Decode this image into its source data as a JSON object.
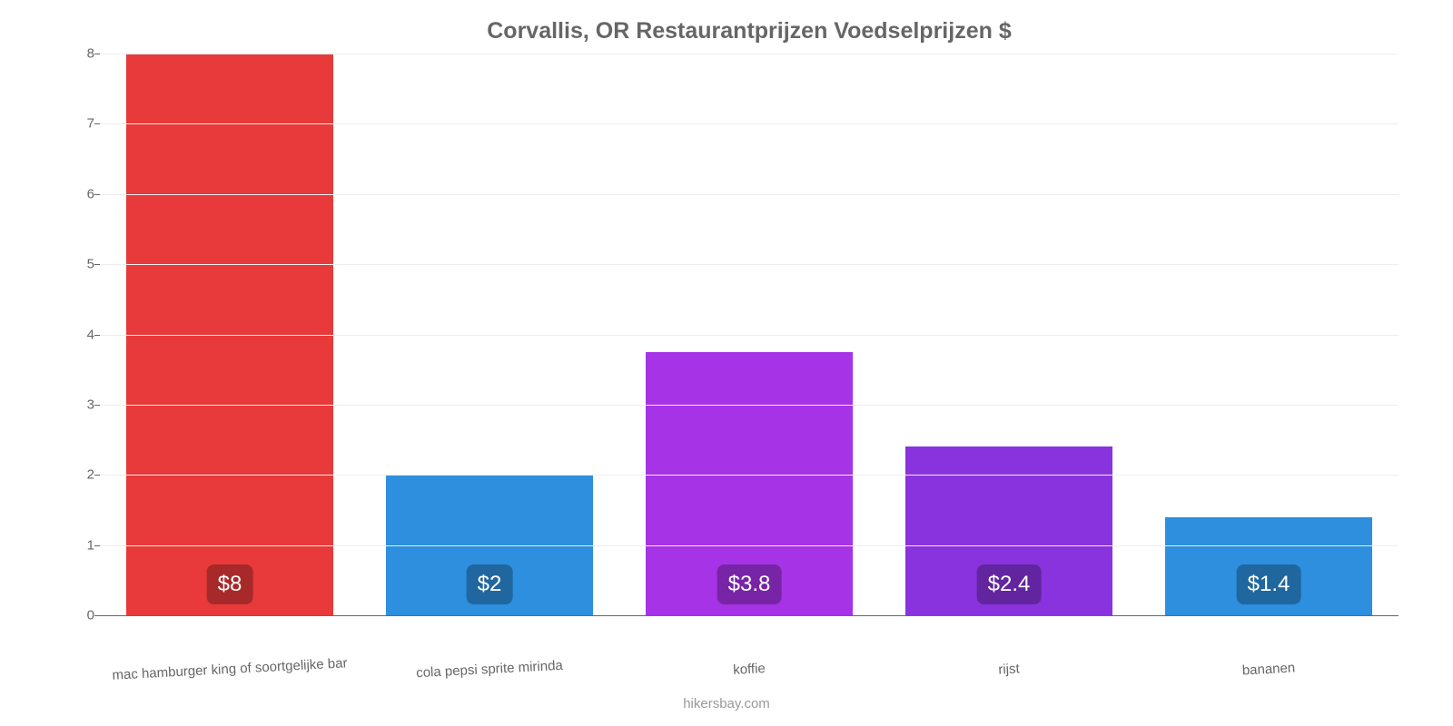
{
  "chart": {
    "type": "bar",
    "title": "Corvallis, OR Restaurantprijzen Voedselprijzen $",
    "title_fontsize": 25,
    "title_color": "#666666",
    "background_color": "#ffffff",
    "grid_color": "#eeeeee",
    "axis_color": "#666666",
    "tick_font_color": "#666666",
    "tick_fontsize": 15,
    "ylim": [
      0,
      8
    ],
    "ytick_step": 1,
    "yticks": [
      0,
      1,
      2,
      3,
      4,
      5,
      6,
      7,
      8
    ],
    "bar_width_ratio": 0.8,
    "value_label_fontsize": 24,
    "value_label_bg": "rgba(0,0,0,0.28)",
    "value_label_color": "#ffffff",
    "categories": [
      "mac hamburger king of soortgelijke bar",
      "cola pepsi sprite mirinda",
      "koffie",
      "rijst",
      "bananen"
    ],
    "values": [
      8,
      2,
      3.75,
      2.4,
      1.4
    ],
    "value_labels": [
      "$8",
      "$2",
      "$3.8",
      "$2.4",
      "$1.4"
    ],
    "bar_colors": [
      "#e83a3a",
      "#2d8fdd",
      "#a633e6",
      "#8833dd",
      "#2d8fdd"
    ],
    "attribution": "hikersbay.com",
    "attribution_color": "#999999"
  }
}
